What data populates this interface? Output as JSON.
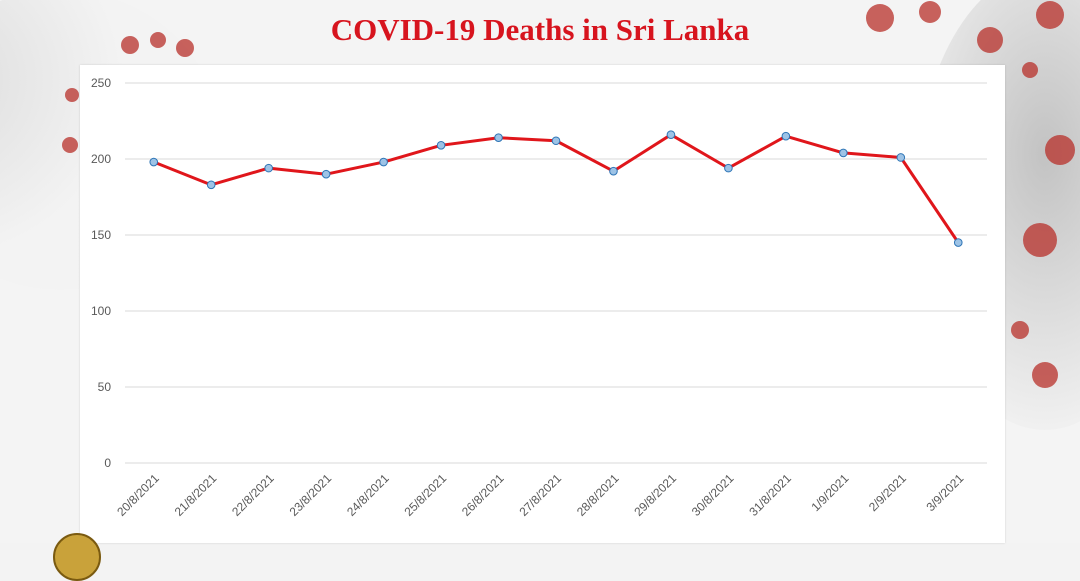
{
  "colors": {
    "title": "#d7141e",
    "line": "#e0161b",
    "marker_fill": "#9dc3e6",
    "marker_stroke": "#2e75b6",
    "grid": "#d9d9d9",
    "tick_text": "#595959",
    "virus": "#c0392b"
  },
  "chart_data": {
    "type": "line",
    "title": "COVID-19 Deaths in Sri Lanka",
    "xlabel": "",
    "ylabel": "",
    "ylim": [
      0,
      250
    ],
    "yticks": [
      0,
      50,
      100,
      150,
      200,
      250
    ],
    "grid": true,
    "legend": "none",
    "categories": [
      "20/8/2021",
      "21/8/2021",
      "22/8/2021",
      "23/8/2021",
      "24/8/2021",
      "25/8/2021",
      "26/8/2021",
      "27/8/2021",
      "28/8/2021",
      "29/8/2021",
      "30/8/2021",
      "31/8/2021",
      "1/9/2021",
      "2/9/2021",
      "3/9/2021"
    ],
    "series": [
      {
        "name": "Deaths",
        "values": [
          198,
          183,
          194,
          190,
          198,
          209,
          214,
          212,
          192,
          216,
          194,
          215,
          204,
          201,
          145
        ]
      }
    ]
  }
}
